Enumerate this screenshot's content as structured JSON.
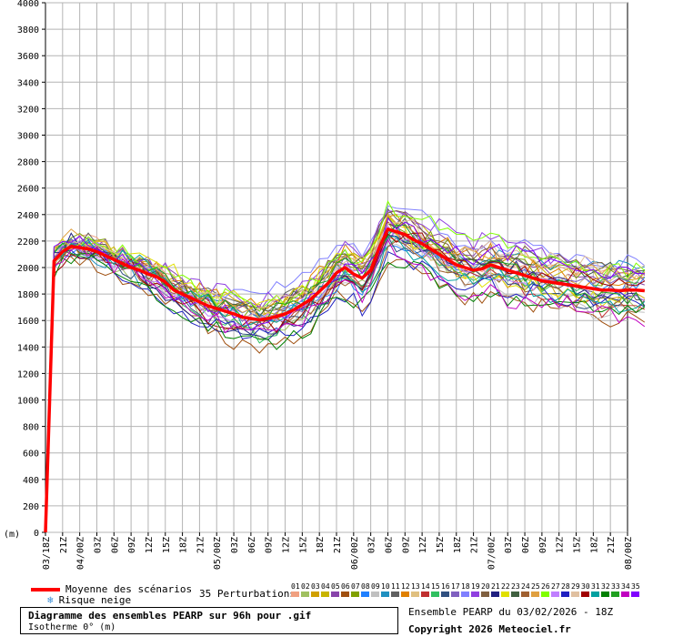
{
  "chart_data": {
    "type": "line",
    "y_unit_label": "(m)",
    "ylim": [
      0,
      4000
    ],
    "y_ticks": [
      0,
      200,
      400,
      600,
      800,
      1000,
      1200,
      1400,
      1600,
      1800,
      2000,
      2200,
      2400,
      2600,
      2800,
      3000,
      3200,
      3400,
      3600,
      3800,
      4000
    ],
    "x_ticks": [
      "03/18Z",
      "21Z",
      "04/00Z",
      "03Z",
      "06Z",
      "09Z",
      "12Z",
      "15Z",
      "18Z",
      "21Z",
      "05/00Z",
      "03Z",
      "06Z",
      "09Z",
      "12Z",
      "15Z",
      "18Z",
      "21Z",
      "06/00Z",
      "03Z",
      "06Z",
      "09Z",
      "12Z",
      "15Z",
      "18Z",
      "21Z",
      "07/00Z",
      "03Z",
      "06Z",
      "09Z",
      "12Z",
      "15Z",
      "18Z",
      "21Z",
      "08/00Z"
    ],
    "x_step_hours": 3,
    "grid": true,
    "mean_series": {
      "name": "Moyenne des scénarios",
      "color": "#ff0000",
      "x_step_hours": 1.5,
      "values": [
        0,
        2050,
        2120,
        2160,
        2150,
        2140,
        2120,
        2090,
        2060,
        2030,
        2000,
        1980,
        1950,
        1930,
        1890,
        1830,
        1800,
        1770,
        1740,
        1710,
        1690,
        1670,
        1650,
        1625,
        1615,
        1605,
        1615,
        1630,
        1650,
        1680,
        1720,
        1760,
        1820,
        1880,
        1960,
        2000,
        1950,
        1920,
        1980,
        2150,
        2290,
        2270,
        2250,
        2210,
        2180,
        2140,
        2100,
        2060,
        2020,
        2000,
        1980,
        1990,
        2020,
        2000,
        1980,
        1960,
        1940,
        1920,
        1900,
        1890,
        1880,
        1870,
        1860,
        1850,
        1840,
        1830,
        1830,
        1825,
        1830,
        1830,
        1825
      ]
    },
    "perturbations": [
      {
        "name": "01",
        "color": "#f0a080"
      },
      {
        "name": "02",
        "color": "#a0c060"
      },
      {
        "name": "03",
        "color": "#d0a000"
      },
      {
        "name": "04",
        "color": "#c8b400"
      },
      {
        "name": "05",
        "color": "#8844aa"
      },
      {
        "name": "06",
        "color": "#a05010"
      },
      {
        "name": "07",
        "color": "#80a000"
      },
      {
        "name": "08",
        "color": "#2080ff"
      },
      {
        "name": "09",
        "color": "#c0c0c0"
      },
      {
        "name": "10",
        "color": "#2090c0"
      },
      {
        "name": "11",
        "color": "#606060"
      },
      {
        "name": "12",
        "color": "#e08000"
      },
      {
        "name": "13",
        "color": "#e0c080"
      },
      {
        "name": "14",
        "color": "#c03030"
      },
      {
        "name": "15",
        "color": "#30c060"
      },
      {
        "name": "16",
        "color": "#305080"
      },
      {
        "name": "17",
        "color": "#8060c0"
      },
      {
        "name": "18",
        "color": "#8080ff"
      },
      {
        "name": "19",
        "color": "#9040e0"
      },
      {
        "name": "20",
        "color": "#806040"
      },
      {
        "name": "21",
        "color": "#202080"
      },
      {
        "name": "22",
        "color": "#e0e000"
      },
      {
        "name": "23",
        "color": "#406040"
      },
      {
        "name": "24",
        "color": "#a06030"
      },
      {
        "name": "25",
        "color": "#e0a040"
      },
      {
        "name": "26",
        "color": "#80ff00"
      },
      {
        "name": "27",
        "color": "#c080ff"
      },
      {
        "name": "28",
        "color": "#2020c0"
      },
      {
        "name": "29",
        "color": "#e0c0a0"
      },
      {
        "name": "30",
        "color": "#a00000"
      },
      {
        "name": "31",
        "color": "#00a0a0"
      },
      {
        "name": "32",
        "color": "#008000"
      },
      {
        "name": "33",
        "color": "#20a020"
      },
      {
        "name": "34",
        "color": "#c000c0"
      },
      {
        "name": "35",
        "color": "#8000ff"
      }
    ]
  },
  "legend": {
    "mean_label": "Moyenne des scénarios",
    "snow_label": "Risque neige",
    "perturbations_label": "35 Perturbations"
  },
  "title": {
    "line1": "Diagramme des ensembles PEARP sur 96h pour .gif",
    "line2": "Isotherme 0° (m)"
  },
  "info": {
    "run": "Ensemble PEARP du 03/02/2026 - 18Z",
    "copyright": "Copyright 2026 Meteociel.fr"
  }
}
